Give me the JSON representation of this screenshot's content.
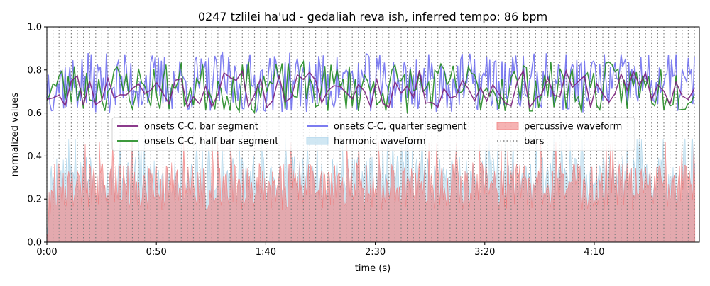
{
  "chart_data": {
    "type": "line",
    "title": "0247 tzlilei ha'ud - gedaliah reva ish, inferred tempo: 86 bpm",
    "xlabel": "time (s)",
    "ylabel": "normalized values",
    "xlim": [
      0,
      298
    ],
    "ylim": [
      0,
      1.0
    ],
    "grid": false,
    "legend_position": "center",
    "x_ticks": [
      {
        "value": 0,
        "label": "0:00"
      },
      {
        "value": 50,
        "label": "0:50"
      },
      {
        "value": 100,
        "label": "1:40"
      },
      {
        "value": 150,
        "label": "2:30"
      },
      {
        "value": 200,
        "label": "3:20"
      },
      {
        "value": 250,
        "label": "4:10"
      }
    ],
    "y_ticks": [
      {
        "value": 0,
        "label": "0.0"
      },
      {
        "value": 0.2,
        "label": "0.2"
      },
      {
        "value": 0.4,
        "label": "0.4"
      },
      {
        "value": 0.6,
        "label": "0.6"
      },
      {
        "value": 0.8,
        "label": "0.8"
      },
      {
        "value": 1.0,
        "label": "1.0"
      }
    ],
    "bar_interval_s": 2.79,
    "data_end_s": 296,
    "series": [
      {
        "name": "onsets C-C, bar segment",
        "kind": "line",
        "color": "#7b1f7b",
        "step_s": 2.79,
        "mean": 0.71,
        "amplitude": 0.09,
        "seed": 11
      },
      {
        "name": "onsets C-C, half bar segment",
        "kind": "line",
        "color": "#228b22",
        "step_s": 1.395,
        "mean": 0.72,
        "amplitude": 0.12,
        "seed": 23
      },
      {
        "name": "onsets C-C, quarter segment",
        "kind": "line",
        "color": "#6a6aee",
        "step_s": 0.6975,
        "mean": 0.74,
        "amplitude": 0.14,
        "seed": 37
      },
      {
        "name": "harmonic waveform",
        "kind": "area",
        "color": "#a9d3ea",
        "step_s": 0.5,
        "mean": 0.3,
        "amplitude": 0.12,
        "seed": 5
      },
      {
        "name": "percussive waveform",
        "kind": "area",
        "color": "#f08080",
        "step_s": 0.5,
        "mean": 0.27,
        "amplitude": 0.12,
        "seed": 9
      },
      {
        "name": "bars",
        "kind": "vlines",
        "color": "#808080"
      }
    ]
  }
}
